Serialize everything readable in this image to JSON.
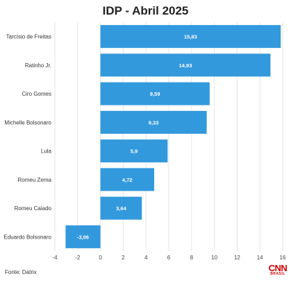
{
  "chart_data": {
    "type": "bar",
    "orientation": "horizontal",
    "title": "IDP - Abril 2025",
    "categories": [
      "Tarcísio de Freitas",
      "Ratinho Jr.",
      "Ciro Gomes",
      "Michelle Bolsonaro",
      "Lula",
      "Romeu Zema",
      "Romeu Caiado",
      "Eduardo Bolsonaro"
    ],
    "values": [
      15.83,
      14.93,
      9.59,
      9.33,
      5.9,
      4.72,
      3.64,
      -3.06
    ],
    "value_labels": [
      "15,83",
      "14,93",
      "9,59",
      "9,33",
      "5,9",
      "4,72",
      "3,64",
      "-3,06"
    ],
    "xlim": [
      -4,
      16
    ],
    "xticks": [
      -4,
      -2,
      0,
      2,
      4,
      6,
      8,
      10,
      12,
      14,
      16
    ],
    "grid": true,
    "bar_color": "#3399dd",
    "label_color": "#ffffff"
  },
  "source": "Fonte: Datrix",
  "logo": {
    "main": "CNN",
    "sub": "BRASIL"
  }
}
